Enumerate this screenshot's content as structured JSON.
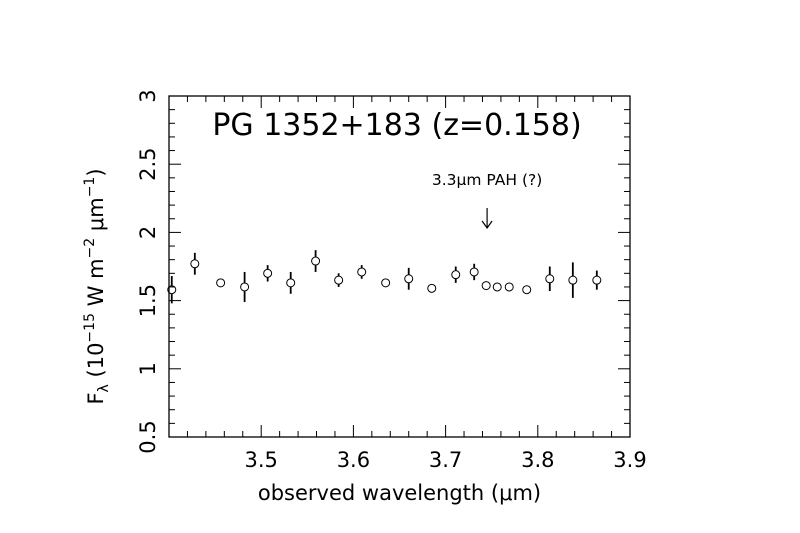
{
  "chart_data": {
    "type": "scatter",
    "title": "PG 1352+183 (z=0.158)",
    "annotation": "3.3μm PAH (?)",
    "annotation_x": 3.745,
    "xlabel": "observed wavelength (μm)",
    "ylabel": {
      "base": "F",
      "sub": "λ",
      "units_pre": " (10",
      "exp1": "−15",
      "units_mid": " W m",
      "exp2": "−2",
      "units_mid2": " μm",
      "exp3": "−1",
      "units_post": ")"
    },
    "xlim": [
      3.4,
      3.9
    ],
    "ylim": [
      0.5,
      3
    ],
    "x_ticks": [
      "3.5",
      "3.6",
      "3.7",
      "3.8",
      "3.9"
    ],
    "y_ticks": [
      "0.5",
      "1",
      "1.5",
      "2",
      "2.5",
      "3"
    ],
    "grid": false,
    "marker": "open-circle",
    "points": [
      {
        "x": 3.403,
        "y": 1.58,
        "err": 0.1
      },
      {
        "x": 3.428,
        "y": 1.77,
        "err": 0.08
      },
      {
        "x": 3.456,
        "y": 1.63,
        "err": 0.02
      },
      {
        "x": 3.482,
        "y": 1.6,
        "err": 0.11
      },
      {
        "x": 3.507,
        "y": 1.7,
        "err": 0.06
      },
      {
        "x": 3.532,
        "y": 1.63,
        "err": 0.08
      },
      {
        "x": 3.559,
        "y": 1.79,
        "err": 0.08
      },
      {
        "x": 3.584,
        "y": 1.65,
        "err": 0.05
      },
      {
        "x": 3.609,
        "y": 1.71,
        "err": 0.05
      },
      {
        "x": 3.635,
        "y": 1.63,
        "err": 0.02
      },
      {
        "x": 3.66,
        "y": 1.66,
        "err": 0.08
      },
      {
        "x": 3.685,
        "y": 1.59,
        "err": 0.02
      },
      {
        "x": 3.711,
        "y": 1.69,
        "err": 0.06
      },
      {
        "x": 3.731,
        "y": 1.71,
        "err": 0.06
      },
      {
        "x": 3.744,
        "y": 1.61,
        "err": 0.02
      },
      {
        "x": 3.756,
        "y": 1.6,
        "err": 0.03
      },
      {
        "x": 3.769,
        "y": 1.6,
        "err": 0.02
      },
      {
        "x": 3.788,
        "y": 1.58,
        "err": 0.02
      },
      {
        "x": 3.813,
        "y": 1.66,
        "err": 0.09
      },
      {
        "x": 3.838,
        "y": 1.65,
        "err": 0.13
      },
      {
        "x": 3.864,
        "y": 1.65,
        "err": 0.07
      }
    ]
  }
}
